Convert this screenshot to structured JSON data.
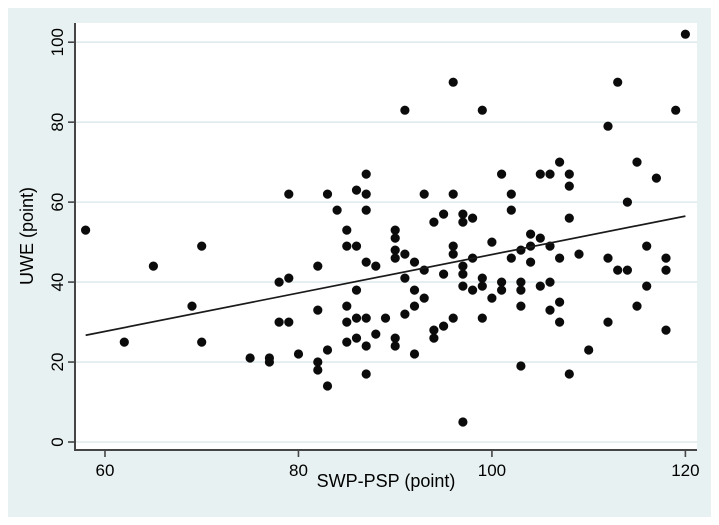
{
  "figure": {
    "kind": "stata-style scatter plot with linear fit line",
    "background_color": "#e8f1f1",
    "plot_background": "#ffffff",
    "gridline_color": "#dfeaec",
    "axis_color": "#454545",
    "dot_color": "#0b0b0b",
    "fit_line_color": "#1a1a1a"
  },
  "chart_data": {
    "type": "scatter",
    "title": "",
    "xlabel": "SWP-PSP (point)",
    "ylabel": "UWE (point)",
    "xlim": [
      56.9,
      121.2
    ],
    "ylim": [
      -2,
      104.8
    ],
    "x_ticks": [
      60,
      80,
      100,
      120
    ],
    "y_ticks": [
      0,
      20,
      40,
      60,
      80,
      100
    ],
    "grid": "horizontal gridlines at y ticks",
    "legend": "none",
    "fit_line": {
      "x1": 58,
      "y1": 26.7,
      "x2": 120,
      "y2": 56.5
    },
    "points": [
      [
        58,
        53
      ],
      [
        62,
        25
      ],
      [
        65,
        44
      ],
      [
        69,
        34
      ],
      [
        70,
        49
      ],
      [
        70,
        25
      ],
      [
        75,
        21
      ],
      [
        77,
        21
      ],
      [
        77,
        20
      ],
      [
        78,
        40
      ],
      [
        79,
        41
      ],
      [
        78,
        30
      ],
      [
        79,
        30
      ],
      [
        79,
        62
      ],
      [
        80,
        22
      ],
      [
        82,
        44
      ],
      [
        82,
        33
      ],
      [
        82,
        20
      ],
      [
        82,
        18
      ],
      [
        83,
        62
      ],
      [
        83,
        23
      ],
      [
        83,
        14
      ],
      [
        84,
        58
      ],
      [
        85,
        53
      ],
      [
        85,
        49
      ],
      [
        86,
        49
      ],
      [
        85,
        34
      ],
      [
        85,
        30
      ],
      [
        85,
        25
      ],
      [
        86,
        63
      ],
      [
        86,
        38
      ],
      [
        86,
        31
      ],
      [
        86,
        26
      ],
      [
        87,
        67
      ],
      [
        87,
        62
      ],
      [
        87,
        58
      ],
      [
        87,
        45
      ],
      [
        87,
        31
      ],
      [
        87,
        24
      ],
      [
        87,
        17
      ],
      [
        88,
        44
      ],
      [
        88,
        27
      ],
      [
        89,
        31
      ],
      [
        90,
        53
      ],
      [
        90,
        51
      ],
      [
        90,
        48
      ],
      [
        90,
        46
      ],
      [
        90,
        26
      ],
      [
        90,
        24
      ],
      [
        91,
        83
      ],
      [
        91,
        47
      ],
      [
        91,
        41
      ],
      [
        91,
        32
      ],
      [
        92,
        45
      ],
      [
        92,
        38
      ],
      [
        92,
        34
      ],
      [
        92,
        22
      ],
      [
        93,
        36
      ],
      [
        93,
        62
      ],
      [
        93,
        43
      ],
      [
        94,
        55
      ],
      [
        94,
        28
      ],
      [
        94,
        26
      ],
      [
        95,
        57
      ],
      [
        95,
        42
      ],
      [
        95,
        29
      ],
      [
        96,
        90
      ],
      [
        96,
        62
      ],
      [
        96,
        49
      ],
      [
        96,
        47
      ],
      [
        96,
        31
      ],
      [
        97,
        57
      ],
      [
        97,
        55
      ],
      [
        97,
        44
      ],
      [
        97,
        42
      ],
      [
        97,
        39
      ],
      [
        97,
        5
      ],
      [
        98,
        56
      ],
      [
        98,
        46
      ],
      [
        98,
        38
      ],
      [
        99,
        83
      ],
      [
        99,
        41
      ],
      [
        99,
        39
      ],
      [
        99,
        31
      ],
      [
        100,
        50
      ],
      [
        100,
        36
      ],
      [
        101,
        67
      ],
      [
        101,
        40
      ],
      [
        101,
        38
      ],
      [
        102,
        62
      ],
      [
        102,
        58
      ],
      [
        102,
        46
      ],
      [
        103,
        48
      ],
      [
        103,
        40
      ],
      [
        103,
        38
      ],
      [
        103,
        34
      ],
      [
        103,
        19
      ],
      [
        104,
        52
      ],
      [
        104,
        49
      ],
      [
        104,
        45
      ],
      [
        105,
        51
      ],
      [
        105,
        67
      ],
      [
        105,
        39
      ],
      [
        106,
        67
      ],
      [
        106,
        40
      ],
      [
        106,
        49
      ],
      [
        106,
        33
      ],
      [
        107,
        70
      ],
      [
        107,
        46
      ],
      [
        107,
        35
      ],
      [
        107,
        30
      ],
      [
        108,
        67
      ],
      [
        108,
        64
      ],
      [
        108,
        56
      ],
      [
        108,
        17
      ],
      [
        109,
        47
      ],
      [
        110,
        23
      ],
      [
        112,
        79
      ],
      [
        112,
        46
      ],
      [
        112,
        30
      ],
      [
        113,
        90
      ],
      [
        113,
        43
      ],
      [
        114,
        43
      ],
      [
        114,
        60
      ],
      [
        115,
        70
      ],
      [
        115,
        34
      ],
      [
        116,
        49
      ],
      [
        116,
        39
      ],
      [
        117,
        66
      ],
      [
        118,
        46
      ],
      [
        118,
        43
      ],
      [
        118,
        28
      ],
      [
        119,
        83
      ],
      [
        120,
        102
      ]
    ]
  }
}
